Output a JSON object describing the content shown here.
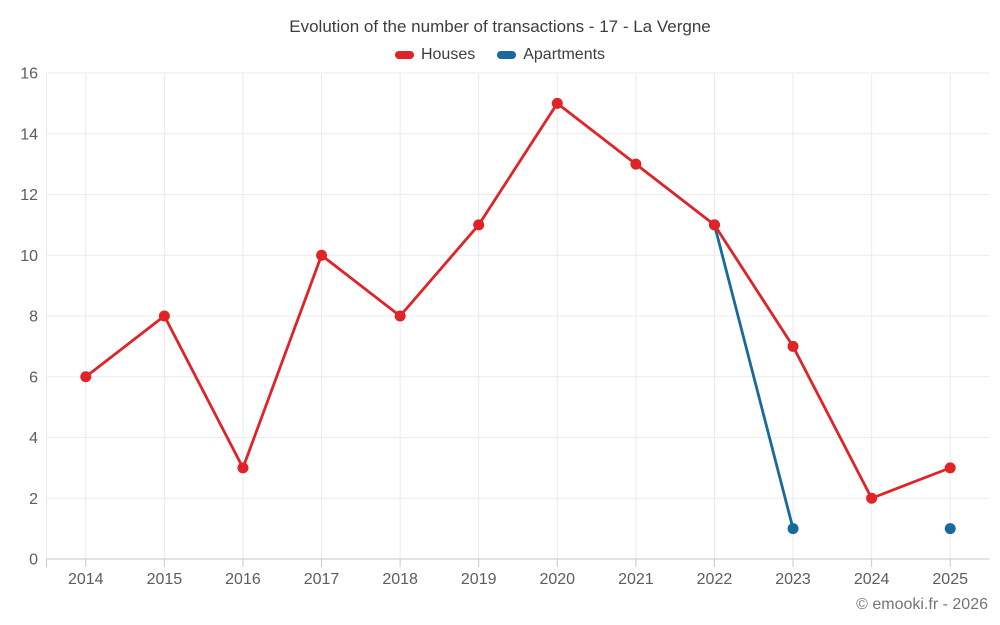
{
  "header": {
    "title": "Evolution of the number of transactions - 17 - La Vergne"
  },
  "footer": {
    "copyright": "© emooki.fr - 2026"
  },
  "colors": {
    "houses": "#e02327",
    "apartments": "#17699e",
    "grid": "#ebebeb",
    "axis": "#c8c8c8",
    "title_text": "#3d3d3d",
    "axis_text": "#5d5d5d",
    "background": "#ffffff"
  },
  "chart_data": {
    "type": "line",
    "title": "Evolution of the number of transactions - 17 - La Vergne",
    "categories": [
      "2014",
      "2015",
      "2016",
      "2017",
      "2018",
      "2019",
      "2020",
      "2021",
      "2022",
      "2023",
      "2024",
      "2025"
    ],
    "series": [
      {
        "name": "Houses",
        "color": "#e02327",
        "values": [
          6,
          8,
          3,
          10,
          8,
          11,
          15,
          13,
          11,
          7,
          2,
          3
        ]
      },
      {
        "name": "Apartments",
        "color": "#17699e",
        "values": [
          null,
          null,
          null,
          null,
          null,
          null,
          null,
          null,
          11,
          1,
          null,
          1
        ]
      }
    ],
    "xlabel": "",
    "ylabel": "",
    "ylim": [
      0,
      16
    ],
    "ytick_step": 2,
    "grid": true,
    "legend_position": "top"
  }
}
